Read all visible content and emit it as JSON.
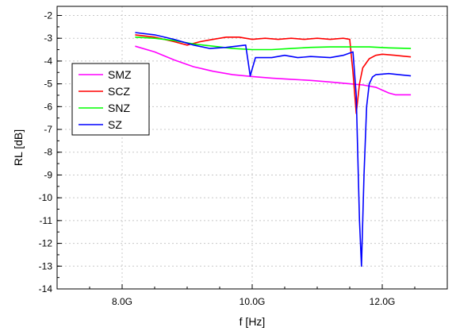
{
  "chart_data": {
    "type": "line",
    "title": "",
    "xlabel": "f [Hz]",
    "ylabel": "RL [dB]",
    "xlim": [
      7.0,
      13.0
    ],
    "ylim": [
      -14,
      -1.6
    ],
    "x_ticks": [
      {
        "value": 8.0,
        "label": "8.0G"
      },
      {
        "value": 10.0,
        "label": "10.0G"
      },
      {
        "value": 12.0,
        "label": "12.0G"
      }
    ],
    "y_ticks": [
      -14,
      -13,
      -12,
      -11,
      -10,
      -9,
      -8,
      -7,
      -6,
      -5,
      -4,
      -3,
      -2
    ],
    "grid": true,
    "legend": "left-middle",
    "series": [
      {
        "name": "SMZ",
        "color": "#ff00ff",
        "points": [
          [
            8.2,
            -3.35
          ],
          [
            8.5,
            -3.6
          ],
          [
            8.8,
            -3.95
          ],
          [
            9.1,
            -4.25
          ],
          [
            9.4,
            -4.45
          ],
          [
            9.7,
            -4.6
          ],
          [
            10.0,
            -4.68
          ],
          [
            10.3,
            -4.75
          ],
          [
            10.6,
            -4.8
          ],
          [
            10.9,
            -4.85
          ],
          [
            11.2,
            -4.92
          ],
          [
            11.5,
            -5.0
          ],
          [
            11.7,
            -5.05
          ],
          [
            11.9,
            -5.15
          ],
          [
            12.1,
            -5.4
          ],
          [
            12.2,
            -5.48
          ],
          [
            12.44,
            -5.48
          ]
        ]
      },
      {
        "name": "SCZ",
        "color": "#ff0000",
        "points": [
          [
            8.2,
            -2.85
          ],
          [
            8.5,
            -2.95
          ],
          [
            8.8,
            -3.15
          ],
          [
            9.0,
            -3.3
          ],
          [
            9.2,
            -3.15
          ],
          [
            9.4,
            -3.05
          ],
          [
            9.6,
            -2.95
          ],
          [
            9.8,
            -2.95
          ],
          [
            10.0,
            -3.05
          ],
          [
            10.2,
            -3.0
          ],
          [
            10.4,
            -3.05
          ],
          [
            10.6,
            -3.0
          ],
          [
            10.8,
            -3.05
          ],
          [
            11.0,
            -3.0
          ],
          [
            11.2,
            -3.05
          ],
          [
            11.4,
            -3.0
          ],
          [
            11.5,
            -3.05
          ],
          [
            11.55,
            -4.5
          ],
          [
            11.6,
            -6.3
          ],
          [
            11.65,
            -5.0
          ],
          [
            11.7,
            -4.3
          ],
          [
            11.8,
            -3.9
          ],
          [
            11.9,
            -3.75
          ],
          [
            12.0,
            -3.7
          ],
          [
            12.2,
            -3.75
          ],
          [
            12.44,
            -3.82
          ]
        ]
      },
      {
        "name": "SNZ",
        "color": "#00ff00",
        "points": [
          [
            8.2,
            -2.95
          ],
          [
            8.5,
            -3.0
          ],
          [
            8.8,
            -3.1
          ],
          [
            9.1,
            -3.25
          ],
          [
            9.4,
            -3.35
          ],
          [
            9.7,
            -3.45
          ],
          [
            10.0,
            -3.5
          ],
          [
            10.3,
            -3.5
          ],
          [
            10.6,
            -3.45
          ],
          [
            10.9,
            -3.4
          ],
          [
            11.2,
            -3.38
          ],
          [
            11.5,
            -3.38
          ],
          [
            11.8,
            -3.38
          ],
          [
            12.1,
            -3.42
          ],
          [
            12.44,
            -3.45
          ]
        ]
      },
      {
        "name": "SZ",
        "color": "#0000ff",
        "points": [
          [
            8.2,
            -2.75
          ],
          [
            8.5,
            -2.85
          ],
          [
            8.8,
            -3.05
          ],
          [
            9.1,
            -3.3
          ],
          [
            9.35,
            -3.45
          ],
          [
            9.6,
            -3.4
          ],
          [
            9.9,
            -3.3
          ],
          [
            9.97,
            -4.65
          ],
          [
            10.05,
            -3.85
          ],
          [
            10.3,
            -3.85
          ],
          [
            10.5,
            -3.75
          ],
          [
            10.7,
            -3.85
          ],
          [
            10.9,
            -3.8
          ],
          [
            11.2,
            -3.85
          ],
          [
            11.4,
            -3.75
          ],
          [
            11.55,
            -3.6
          ],
          [
            11.6,
            -5.5
          ],
          [
            11.65,
            -11.0
          ],
          [
            11.68,
            -13.0
          ],
          [
            11.72,
            -9.0
          ],
          [
            11.76,
            -6.0
          ],
          [
            11.8,
            -5.0
          ],
          [
            11.85,
            -4.7
          ],
          [
            11.9,
            -4.6
          ],
          [
            12.1,
            -4.55
          ],
          [
            12.44,
            -4.65
          ]
        ]
      }
    ]
  }
}
